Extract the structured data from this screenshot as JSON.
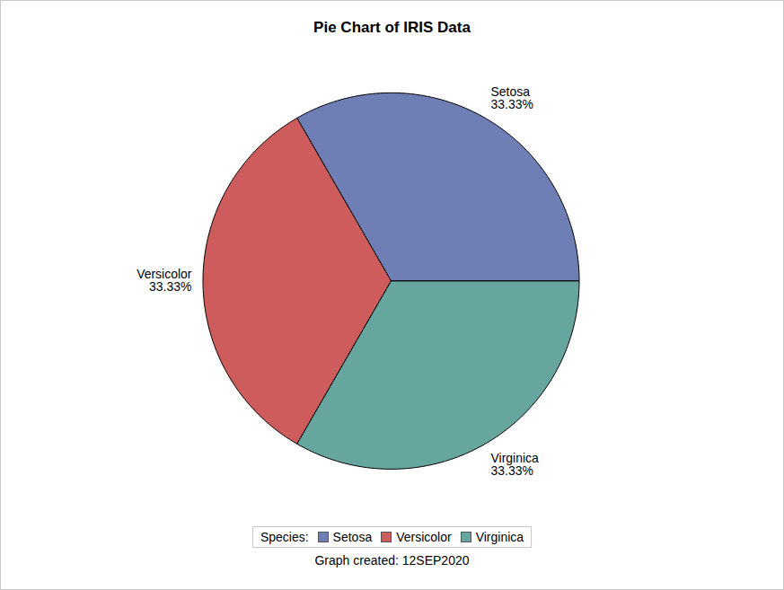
{
  "chart_data": {
    "type": "pie",
    "title": "Pie Chart of IRIS Data",
    "categories": [
      "Setosa",
      "Versicolor",
      "Virginica"
    ],
    "values": [
      33.33,
      33.33,
      33.33
    ],
    "value_labels": [
      "33.33%",
      "33.33%",
      "33.33%"
    ],
    "colors": [
      "#6f7eb5",
      "#cf5c5c",
      "#66a69f"
    ],
    "data_labels": true,
    "legend": "bottom",
    "legend_title": "Species:",
    "caption": "Graph created: 12SEP2020"
  }
}
